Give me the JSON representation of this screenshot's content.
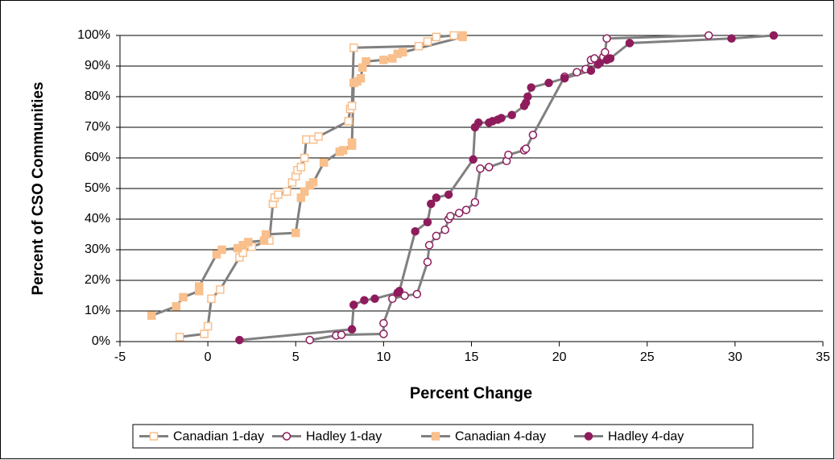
{
  "chart_data": {
    "type": "line",
    "xlabel": "Percent Change",
    "ylabel": "Percent of CSO Communities",
    "xlim": [
      -5,
      35
    ],
    "xticks": [
      -5,
      0,
      5,
      10,
      15,
      20,
      25,
      30,
      35
    ],
    "ylim": [
      0,
      100
    ],
    "yticks": [
      {
        "value": 0,
        "label": "0%"
      },
      {
        "value": 10,
        "label": "10%"
      },
      {
        "value": 20,
        "label": "20%"
      },
      {
        "value": 30,
        "label": "30%"
      },
      {
        "value": 40,
        "label": "40%"
      },
      {
        "value": 50,
        "label": "50%"
      },
      {
        "value": 60,
        "label": "60%"
      },
      {
        "value": 70,
        "label": "70%"
      },
      {
        "value": 80,
        "label": "80%"
      },
      {
        "value": 90,
        "label": "90%"
      },
      {
        "value": 100,
        "label": "100%"
      }
    ],
    "grid": true,
    "legend": "bottom",
    "line_color": "#808080",
    "series": [
      {
        "name": "Canadian 1-day",
        "color": "#f9bf8c",
        "marker": "square",
        "filled": false,
        "x": [
          -1.6,
          -0.2,
          0,
          0.2,
          0.7,
          1.8,
          2,
          2.5,
          3.5,
          3.7,
          3.8,
          4,
          4.5,
          4.8,
          5,
          5.1,
          5.3,
          5.5,
          5.6,
          6,
          6.3,
          8,
          8.1,
          8.2,
          8.3,
          12,
          12.5,
          13,
          14
        ],
        "values": [
          1.5,
          2.5,
          5,
          14,
          17,
          27.5,
          29,
          31,
          33,
          45,
          47,
          48,
          49,
          52,
          54,
          56,
          57,
          60,
          66,
          66,
          67,
          72,
          76,
          77,
          96,
          96.5,
          98,
          99.5,
          100
        ]
      },
      {
        "name": "Hadley 1-day",
        "color": "#8e1c5c",
        "marker": "circle",
        "filled": false,
        "x": [
          5.8,
          7.3,
          7.6,
          10,
          10,
          10.5,
          11.2,
          11.9,
          12.5,
          12.6,
          13,
          13.5,
          13.7,
          13.8,
          14.3,
          14.7,
          15.2,
          15.5,
          16,
          17,
          17.1,
          18,
          18.1,
          18.5,
          20.3,
          21,
          21.5,
          21.8,
          22,
          22.5,
          22.6,
          22.7,
          28.5
        ],
        "values": [
          0.5,
          2,
          2.2,
          2.5,
          6,
          14,
          15,
          15.5,
          26,
          31.5,
          34.5,
          36.5,
          40,
          41,
          42,
          43,
          45.5,
          56.5,
          57,
          59,
          61,
          62.5,
          63,
          67.5,
          86.5,
          88,
          89,
          92,
          92.5,
          93,
          94.5,
          99,
          100
        ]
      },
      {
        "name": "Canadian 4-day",
        "color": "#f9bf8c",
        "marker": "square",
        "filled": true,
        "x": [
          -3.2,
          -1.8,
          -1.4,
          -0.5,
          -0.5,
          0.5,
          0.8,
          1.7,
          2,
          2.3,
          3.2,
          3.3,
          5,
          5.3,
          5.5,
          5.8,
          6,
          6.6,
          7.5,
          7.7,
          8.2,
          8.2,
          8.3,
          8.5,
          8.7,
          8.8,
          9,
          10,
          10.5,
          10.8,
          11.1,
          14.5,
          14.5
        ],
        "values": [
          8.5,
          11.5,
          14.5,
          16.5,
          18,
          28.5,
          30,
          30.5,
          31.5,
          32.5,
          33,
          35,
          35.5,
          47,
          49,
          51,
          52,
          58.5,
          62,
          62.5,
          64,
          65,
          84.5,
          85,
          86,
          89.5,
          91.5,
          92,
          92.5,
          94,
          94.5,
          99.5,
          100
        ]
      },
      {
        "name": "Hadley 4-day",
        "color": "#8e1c5c",
        "marker": "circle",
        "filled": true,
        "x": [
          1.8,
          8.2,
          8.3,
          8.9,
          9.5,
          10.8,
          10.9,
          11.8,
          12.5,
          12.7,
          13,
          13.7,
          15.1,
          15.2,
          15.4,
          16,
          16.2,
          16.5,
          16.7,
          17.3,
          18,
          18.1,
          18.2,
          18.4,
          19.4,
          20.3,
          21.8,
          22.2,
          22.3,
          22.7,
          22.9,
          24,
          29.8,
          32.2
        ],
        "values": [
          0.5,
          4,
          12,
          13.5,
          14,
          16,
          16.5,
          36,
          39,
          45,
          47,
          48,
          59.5,
          70,
          71.5,
          71.5,
          72,
          72.5,
          73,
          74,
          77,
          78,
          80,
          83,
          84.5,
          86,
          88.5,
          90.5,
          91,
          92,
          92.5,
          97.5,
          99,
          100
        ]
      }
    ]
  }
}
